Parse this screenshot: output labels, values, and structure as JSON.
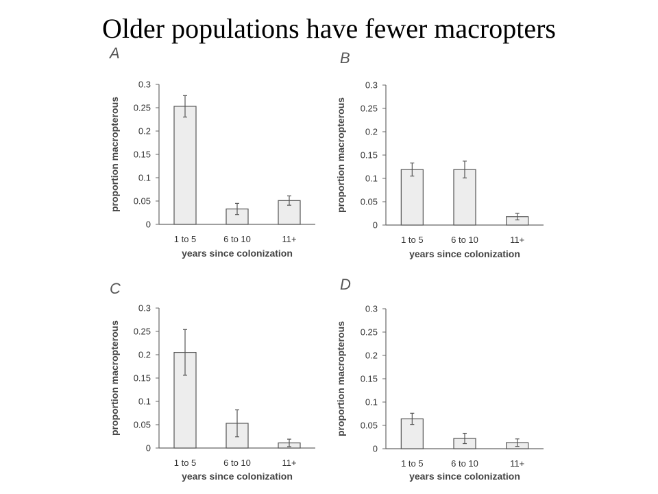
{
  "slide": {
    "title": "Older populations have fewer macropters"
  },
  "colors": {
    "bar_fill": "#ededed",
    "bar_stroke": "#555555",
    "axis": "#666666",
    "error_bar": "#555555"
  },
  "chart_data": [
    {
      "type": "bar",
      "panel": "A",
      "categories": [
        "1 to 5",
        "6 to 10",
        "11+"
      ],
      "values": [
        0.253,
        0.033,
        0.051
      ],
      "errors": [
        0.023,
        0.012,
        0.01
      ],
      "xlabel": "years since colonization",
      "ylabel": "proportion macropterous",
      "ylim": [
        0,
        0.3
      ],
      "yticks": [
        "0",
        "0.05",
        "0.1",
        "0.15",
        "0.2",
        "0.25",
        "0.3"
      ],
      "grid": false
    },
    {
      "type": "bar",
      "panel": "B",
      "categories": [
        "1 to 5",
        "6 to 10",
        "11+"
      ],
      "values": [
        0.119,
        0.119,
        0.018
      ],
      "errors": [
        0.014,
        0.018,
        0.007
      ],
      "xlabel": "years since colonization",
      "ylabel": "proportion macropterous",
      "ylim": [
        0,
        0.3
      ],
      "yticks": [
        "0",
        "0.05",
        "0.1",
        "0.15",
        "0.2",
        "0.25",
        "0.3"
      ],
      "grid": false
    },
    {
      "type": "bar",
      "panel": "C",
      "categories": [
        "1 to 5",
        "6 to 10",
        "11+"
      ],
      "values": [
        0.205,
        0.053,
        0.011
      ],
      "errors": [
        0.049,
        0.029,
        0.008
      ],
      "xlabel": "years since colonization",
      "ylabel": "proportion macropterous",
      "ylim": [
        0,
        0.3
      ],
      "yticks": [
        "0",
        "0.05",
        "0.1",
        "0.15",
        "0.2",
        "0.25",
        "0.3"
      ],
      "grid": false
    },
    {
      "type": "bar",
      "panel": "D",
      "categories": [
        "1 to 5",
        "6 to 10",
        "11+"
      ],
      "values": [
        0.064,
        0.022,
        0.013
      ],
      "errors": [
        0.012,
        0.011,
        0.008
      ],
      "xlabel": "years since colonization",
      "ylabel": "proportion macropterous",
      "ylim": [
        0,
        0.3
      ],
      "yticks": [
        "0",
        "0.05",
        "0.1",
        "0.15",
        "0.2",
        "0.25",
        "0.3"
      ],
      "grid": false
    }
  ]
}
